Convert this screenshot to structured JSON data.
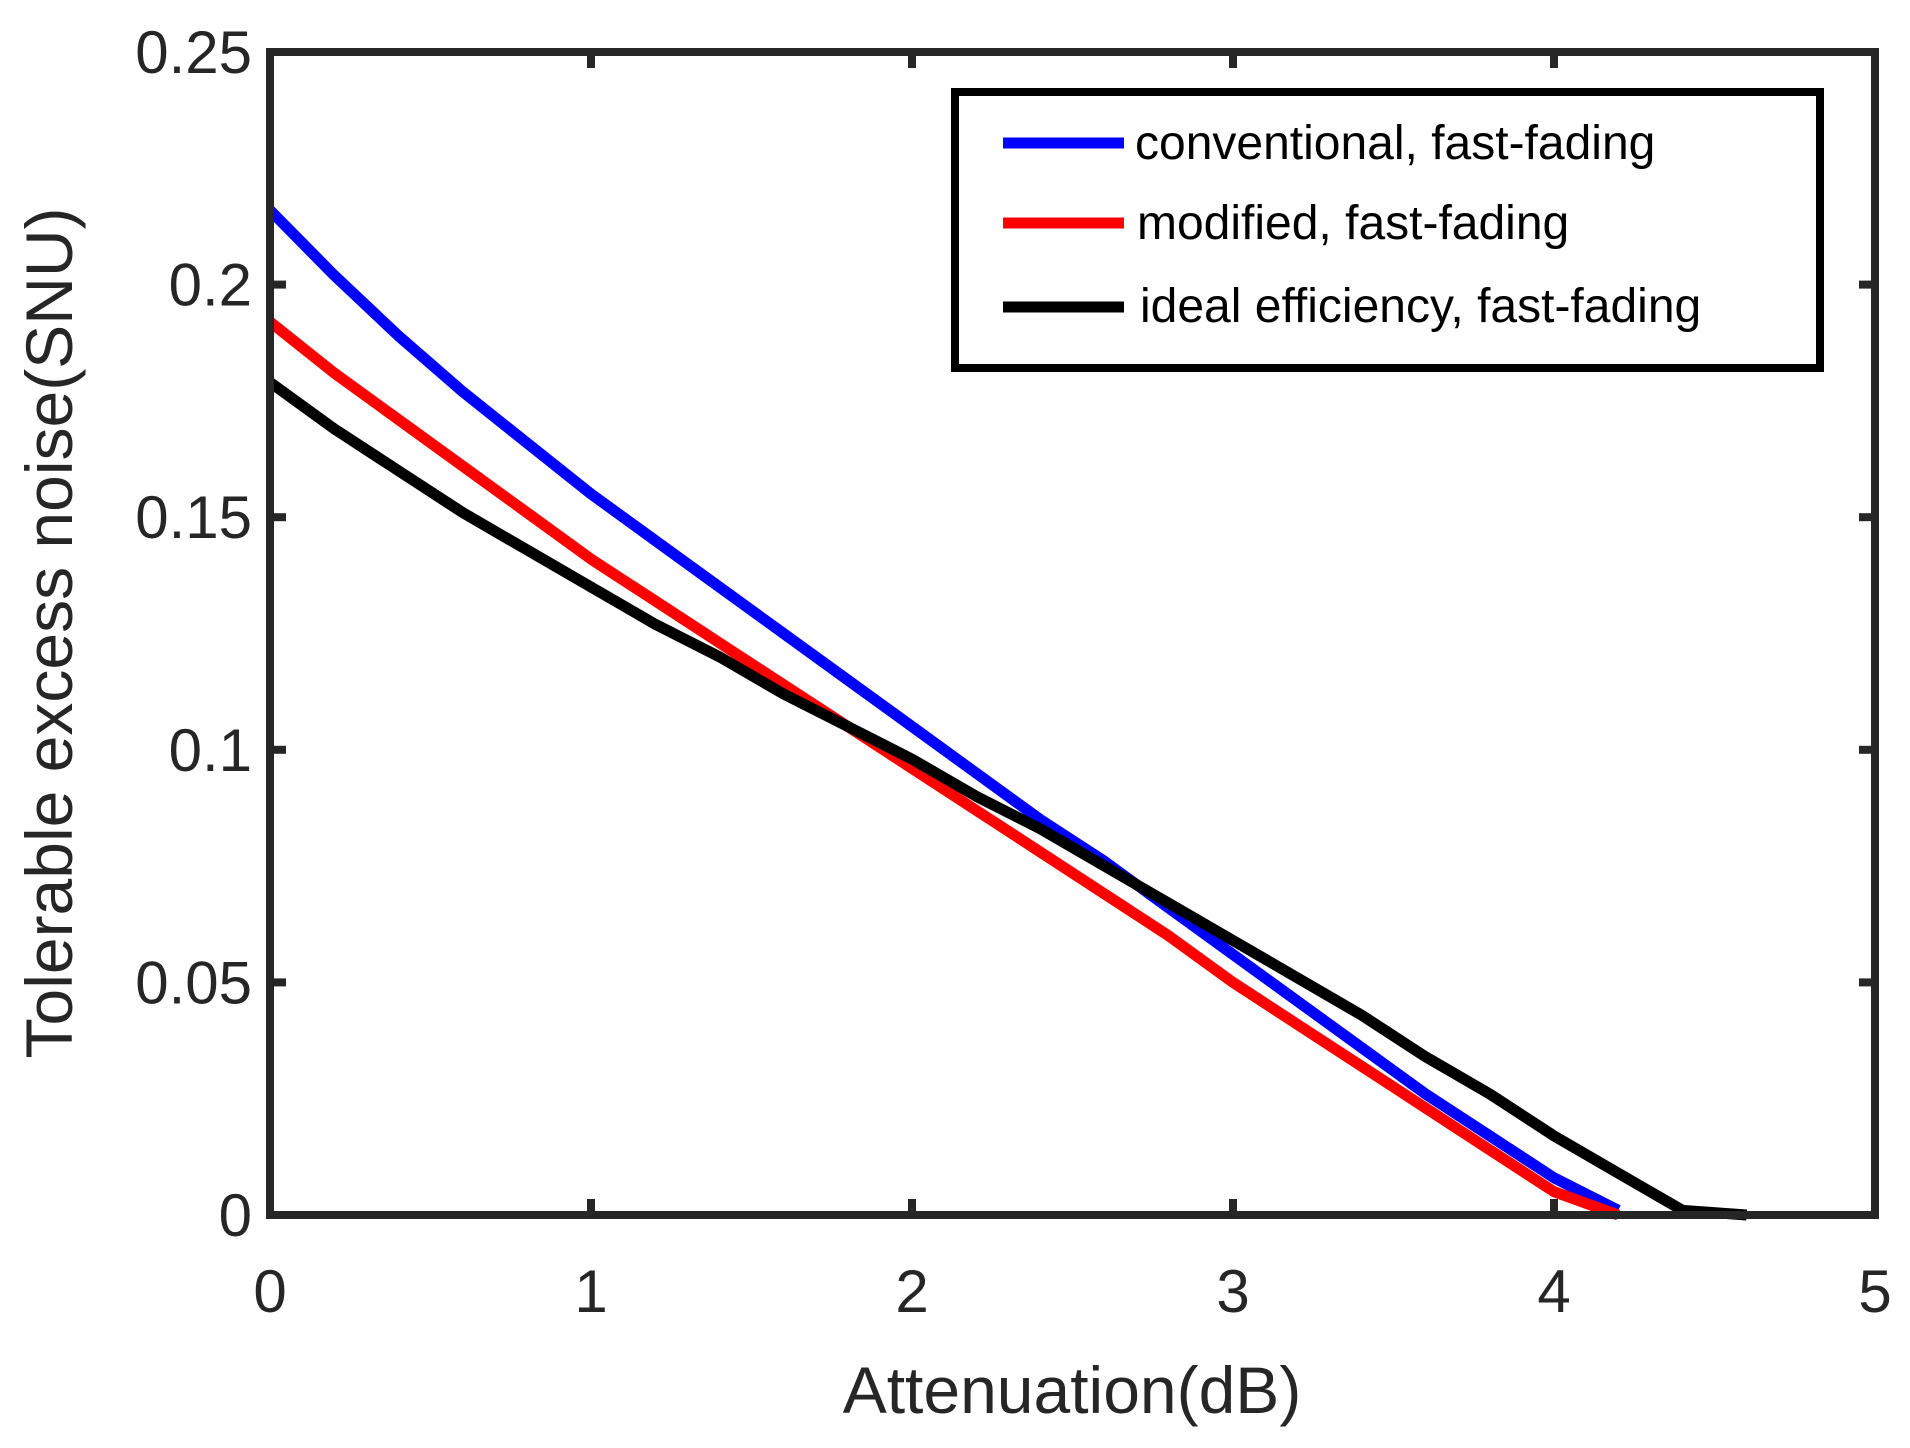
{
  "chart_data": {
    "type": "line",
    "title": "",
    "xlabel": "Attenuation(dB)",
    "ylabel": "Tolerable excess noise(SNU)",
    "xlim": [
      0,
      5
    ],
    "ylim": [
      0,
      0.25
    ],
    "xticks": [
      0,
      1,
      2,
      3,
      4,
      5
    ],
    "xtick_labels": [
      "0",
      "1",
      "2",
      "3",
      "4",
      "5"
    ],
    "yticks": [
      0,
      0.05,
      0.1,
      0.15,
      0.2,
      0.25
    ],
    "ytick_labels": [
      "0",
      "0.05",
      "0.1",
      "0.15",
      "0.2",
      "0.25"
    ],
    "grid": false,
    "legend_position": "top-right",
    "series": [
      {
        "name": "conventional, fast-fading",
        "color": "#0000ff",
        "x": [
          0,
          0.2,
          0.4,
          0.6,
          0.8,
          1.0,
          1.2,
          1.4,
          1.6,
          1.8,
          2.0,
          2.2,
          2.4,
          2.6,
          2.8,
          3.0,
          3.2,
          3.4,
          3.6,
          3.8,
          4.0,
          4.2
        ],
        "y": [
          0.216,
          0.202,
          0.189,
          0.177,
          0.166,
          0.155,
          0.145,
          0.135,
          0.125,
          0.115,
          0.105,
          0.095,
          0.085,
          0.076,
          0.066,
          0.056,
          0.046,
          0.036,
          0.026,
          0.017,
          0.008,
          0.001
        ]
      },
      {
        "name": "modified, fast-fading",
        "color": "#ff0000",
        "x": [
          0,
          0.2,
          0.4,
          0.6,
          0.8,
          1.0,
          1.2,
          1.4,
          1.6,
          1.8,
          2.0,
          2.2,
          2.4,
          2.6,
          2.8,
          3.0,
          3.2,
          3.4,
          3.6,
          3.8,
          4.0,
          4.2
        ],
        "y": [
          0.192,
          0.181,
          0.171,
          0.161,
          0.151,
          0.141,
          0.132,
          0.123,
          0.114,
          0.105,
          0.096,
          0.087,
          0.078,
          0.069,
          0.06,
          0.05,
          0.041,
          0.032,
          0.023,
          0.014,
          0.005,
          0.0
        ]
      },
      {
        "name": "ideal efficiency, fast-fading",
        "color": "#000000",
        "x": [
          0,
          0.2,
          0.4,
          0.6,
          0.8,
          1.0,
          1.2,
          1.4,
          1.6,
          1.8,
          2.0,
          2.2,
          2.4,
          2.6,
          2.8,
          3.0,
          3.2,
          3.4,
          3.6,
          3.8,
          4.0,
          4.2,
          4.4,
          4.6
        ],
        "y": [
          0.179,
          0.169,
          0.16,
          0.151,
          0.143,
          0.135,
          0.127,
          0.12,
          0.112,
          0.105,
          0.098,
          0.09,
          0.083,
          0.075,
          0.067,
          0.059,
          0.051,
          0.043,
          0.034,
          0.026,
          0.017,
          0.009,
          0.001,
          0.0
        ]
      }
    ]
  }
}
